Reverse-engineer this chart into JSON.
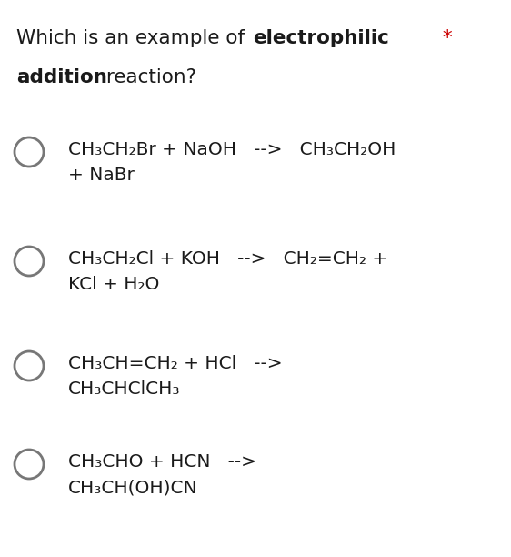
{
  "background_color": "#ffffff",
  "star_color": "#cc0000",
  "text_color": "#1a1a1a",
  "circle_color": "#777777",
  "title_fontsize": 15.5,
  "option_fontsize": 14.5,
  "figsize": [
    5.62,
    6.12
  ],
  "dpi": 100,
  "options": [
    {
      "line1": "CH₃CH₂Br + NaOH   -->   CH₃CH₂OH",
      "line2": "+ NaBr"
    },
    {
      "line1": "CH₃CH₂Cl + KOH   -->   CH₂=CH₂ +",
      "line2": "KCl + H₂O"
    },
    {
      "line1": "CH₃CH=CH₂ + HCl   -->",
      "line2": "CH₃CHClCH₃"
    },
    {
      "line1": "CH₃CHO + HCN   -->",
      "line2": "CH₃CH(OH)CN"
    }
  ]
}
